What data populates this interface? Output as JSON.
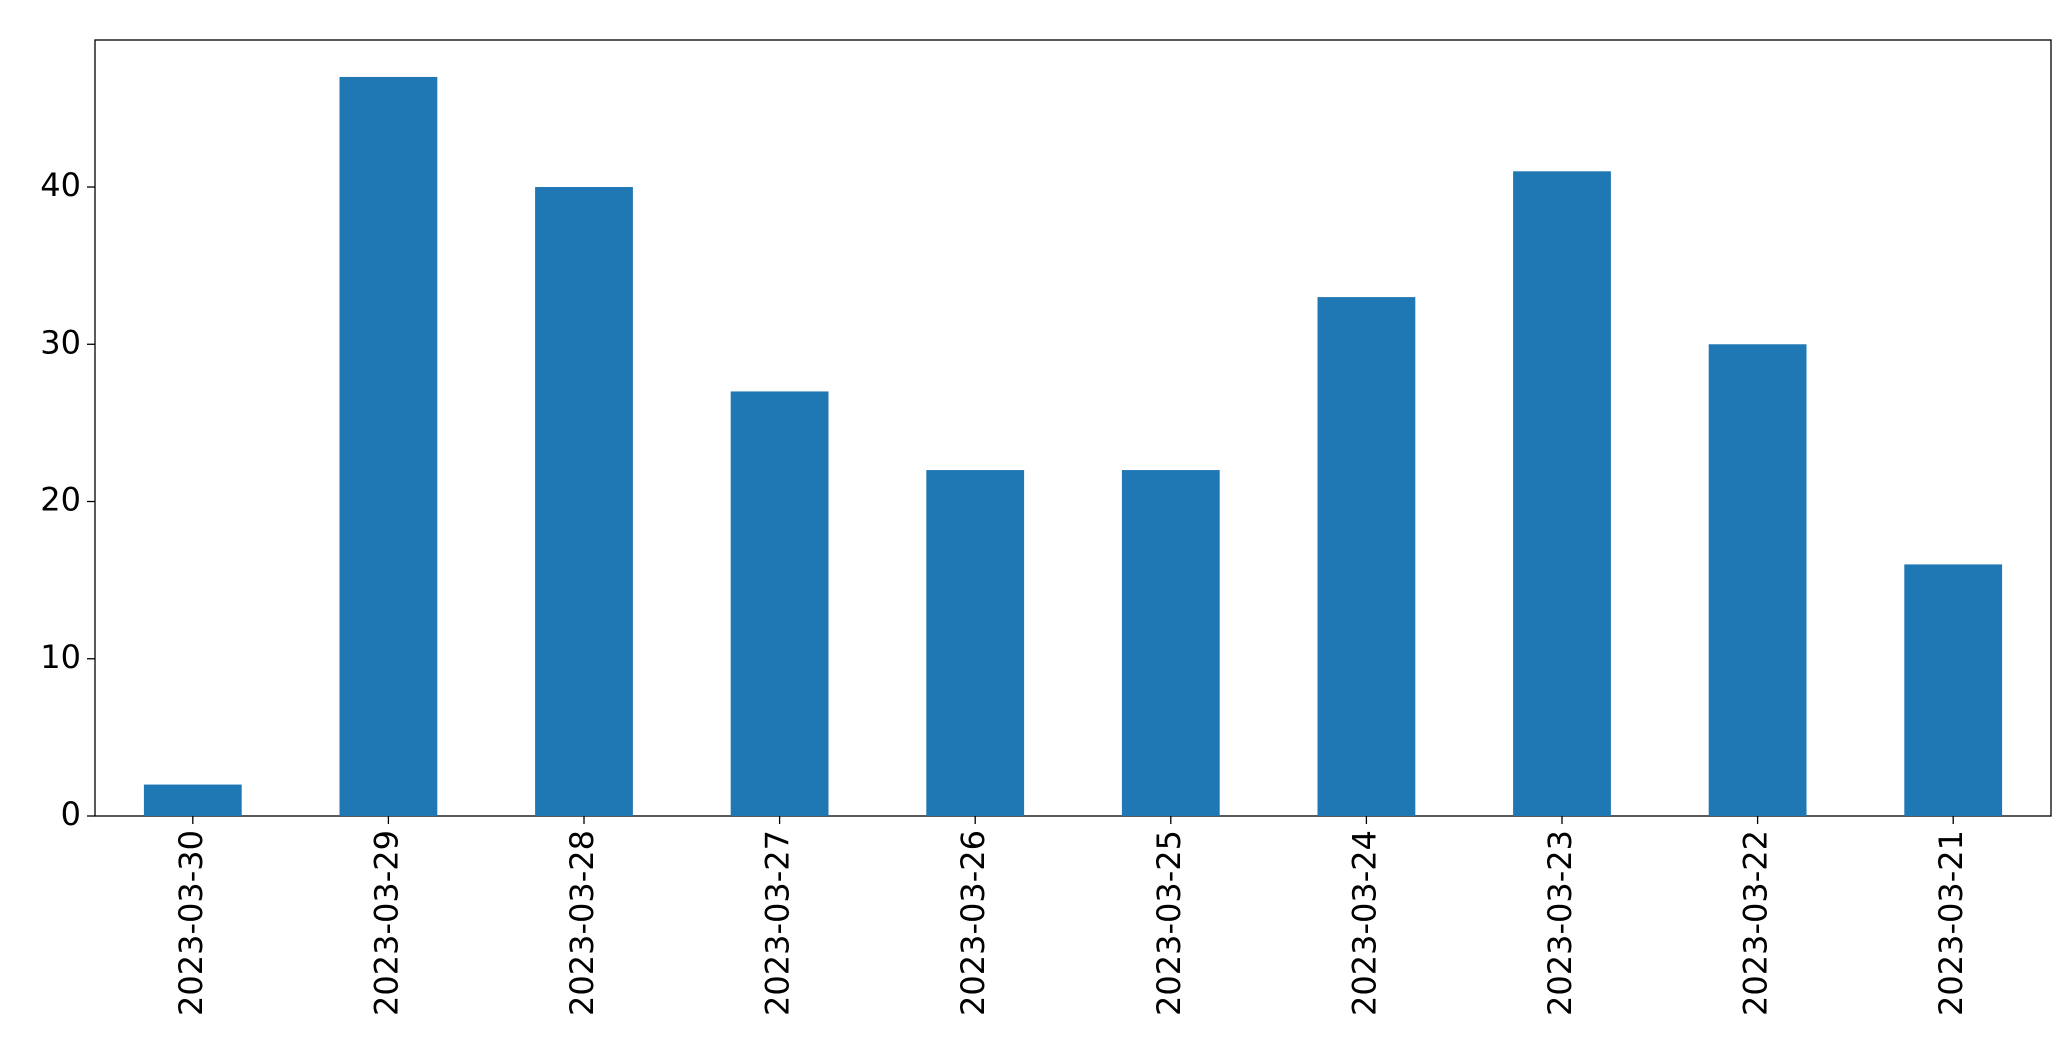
{
  "chart_data": {
    "type": "bar",
    "categories": [
      "2023-03-30",
      "2023-03-29",
      "2023-03-28",
      "2023-03-27",
      "2023-03-26",
      "2023-03-25",
      "2023-03-24",
      "2023-03-23",
      "2023-03-22",
      "2023-03-21"
    ],
    "values": [
      2,
      47,
      40,
      27,
      22,
      22,
      33,
      41,
      30,
      16
    ],
    "color": "#1f77b4",
    "ylim": [
      0,
      49.35
    ],
    "yticks": [
      0,
      10,
      20,
      30,
      40
    ],
    "grid": false
  }
}
